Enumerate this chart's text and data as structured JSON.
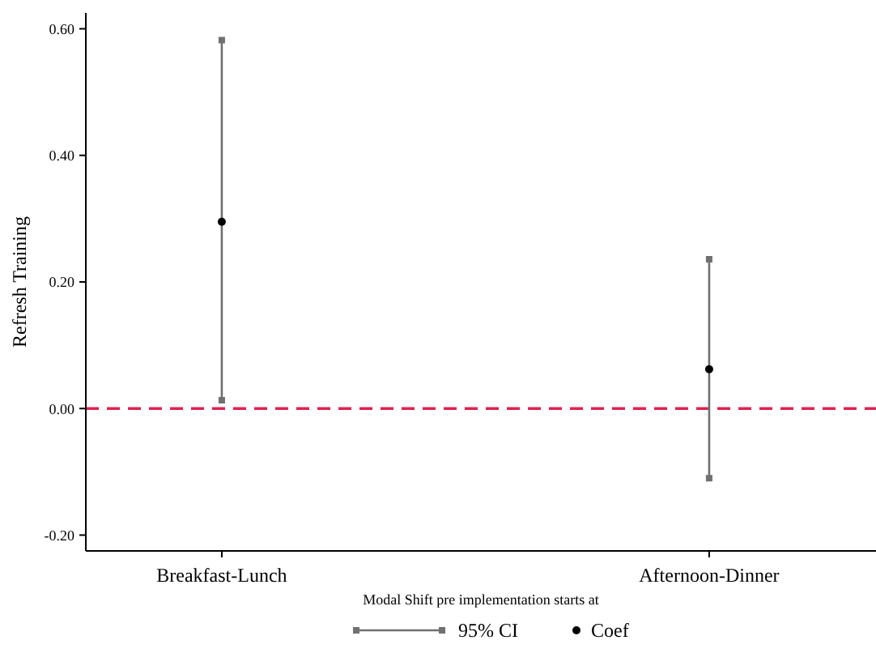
{
  "chart_data": {
    "type": "scatter",
    "xlabel": "Modal Shift pre implementation starts at",
    "ylabel": "Refresh Training",
    "categories": [
      "Breakfast-Lunch",
      "Afternoon-Dinner"
    ],
    "series": [
      {
        "name": "Coef",
        "color": "#000000",
        "values": [
          0.295,
          0.062
        ],
        "errors": [
          [
            0.013,
            0.582
          ],
          [
            -0.11,
            0.236
          ]
        ]
      }
    ],
    "annotations": [
      "95% CI"
    ],
    "ylim": [
      -0.225,
      0.625
    ],
    "yticks": [
      {
        "value": -0.2,
        "label": "-0.20"
      },
      {
        "value": 0,
        "label": "0.00"
      },
      {
        "value": 0.2,
        "label": "0.20"
      },
      {
        "value": 0.4,
        "label": "0.40"
      },
      {
        "value": 0.6,
        "label": "0.60"
      }
    ],
    "ref_lines": [
      {
        "axis": "y",
        "value": 0,
        "color": "#dc2450",
        "line_style": "dashed"
      }
    ],
    "grid": false,
    "legend": "bottom",
    "marker": "circle"
  }
}
